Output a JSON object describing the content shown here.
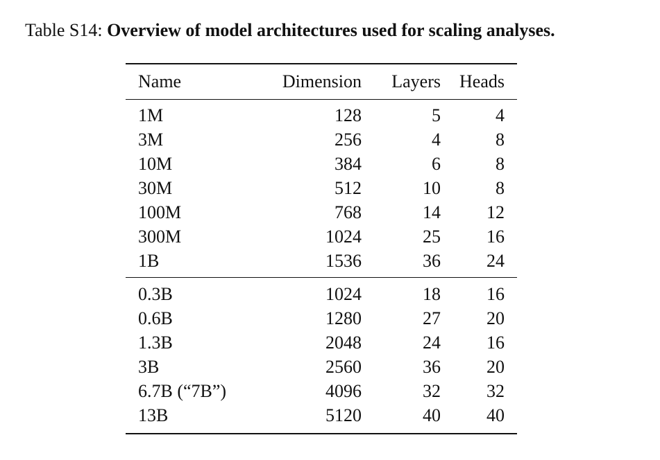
{
  "caption": {
    "label": "Table S14:",
    "title": "Overview of model architectures used for scaling analyses."
  },
  "table": {
    "headers": [
      "Name",
      "Dimension",
      "Layers",
      "Heads"
    ],
    "group1": [
      [
        "1M",
        "128",
        "5",
        "4"
      ],
      [
        "3M",
        "256",
        "4",
        "8"
      ],
      [
        "10M",
        "384",
        "6",
        "8"
      ],
      [
        "30M",
        "512",
        "10",
        "8"
      ],
      [
        "100M",
        "768",
        "14",
        "12"
      ],
      [
        "300M",
        "1024",
        "25",
        "16"
      ],
      [
        "1B",
        "1536",
        "36",
        "24"
      ]
    ],
    "group2": [
      [
        "0.3B",
        "1024",
        "18",
        "16"
      ],
      [
        "0.6B",
        "1280",
        "27",
        "20"
      ],
      [
        "1.3B",
        "2048",
        "24",
        "16"
      ],
      [
        "3B",
        "2560",
        "36",
        "20"
      ],
      [
        "6.7B (“7B”)",
        "4096",
        "32",
        "32"
      ],
      [
        "13B",
        "5120",
        "40",
        "40"
      ]
    ]
  }
}
